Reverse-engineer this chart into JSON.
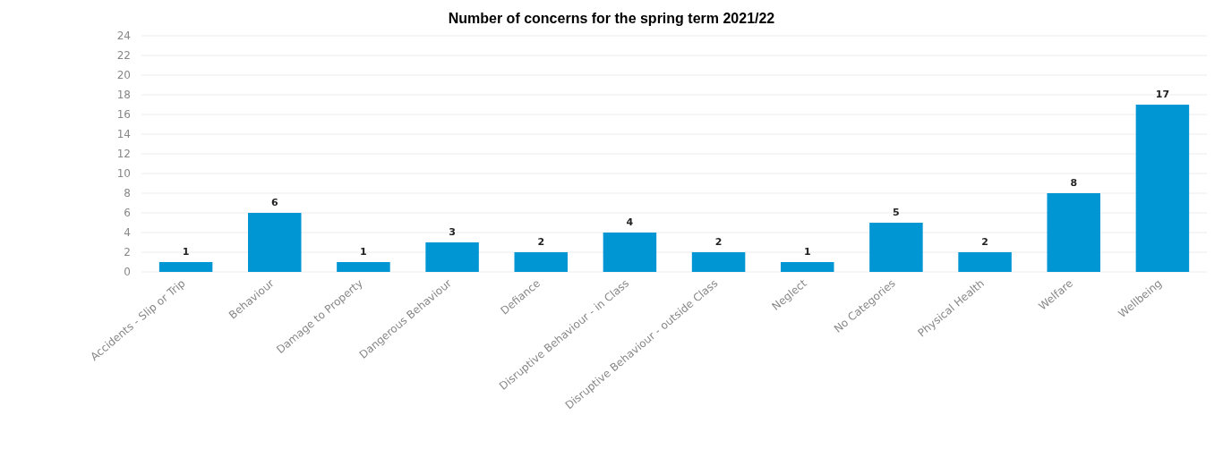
{
  "chart_data": {
    "type": "bar",
    "title": "Number of concerns for the spring term 2021/22",
    "categories": [
      "Accidents - Slip or Trip",
      "Behaviour",
      "Damage to Property",
      "Dangerous Behaviour",
      "Defiance",
      "Disruptive Behaviour - in Class",
      "Disruptive Behaviour - outside Class",
      "Neglect",
      "No Categories",
      "Physical Health",
      "Welfare",
      "Wellbeing"
    ],
    "values": [
      1,
      6,
      1,
      3,
      2,
      4,
      2,
      1,
      5,
      2,
      8,
      17
    ],
    "color": "#0095d3",
    "ylim": [
      0,
      24
    ],
    "yticks": [
      0,
      2,
      4,
      6,
      8,
      10,
      12,
      14,
      16,
      18,
      20,
      22,
      24
    ],
    "grid": "y",
    "data_labels": true
  }
}
